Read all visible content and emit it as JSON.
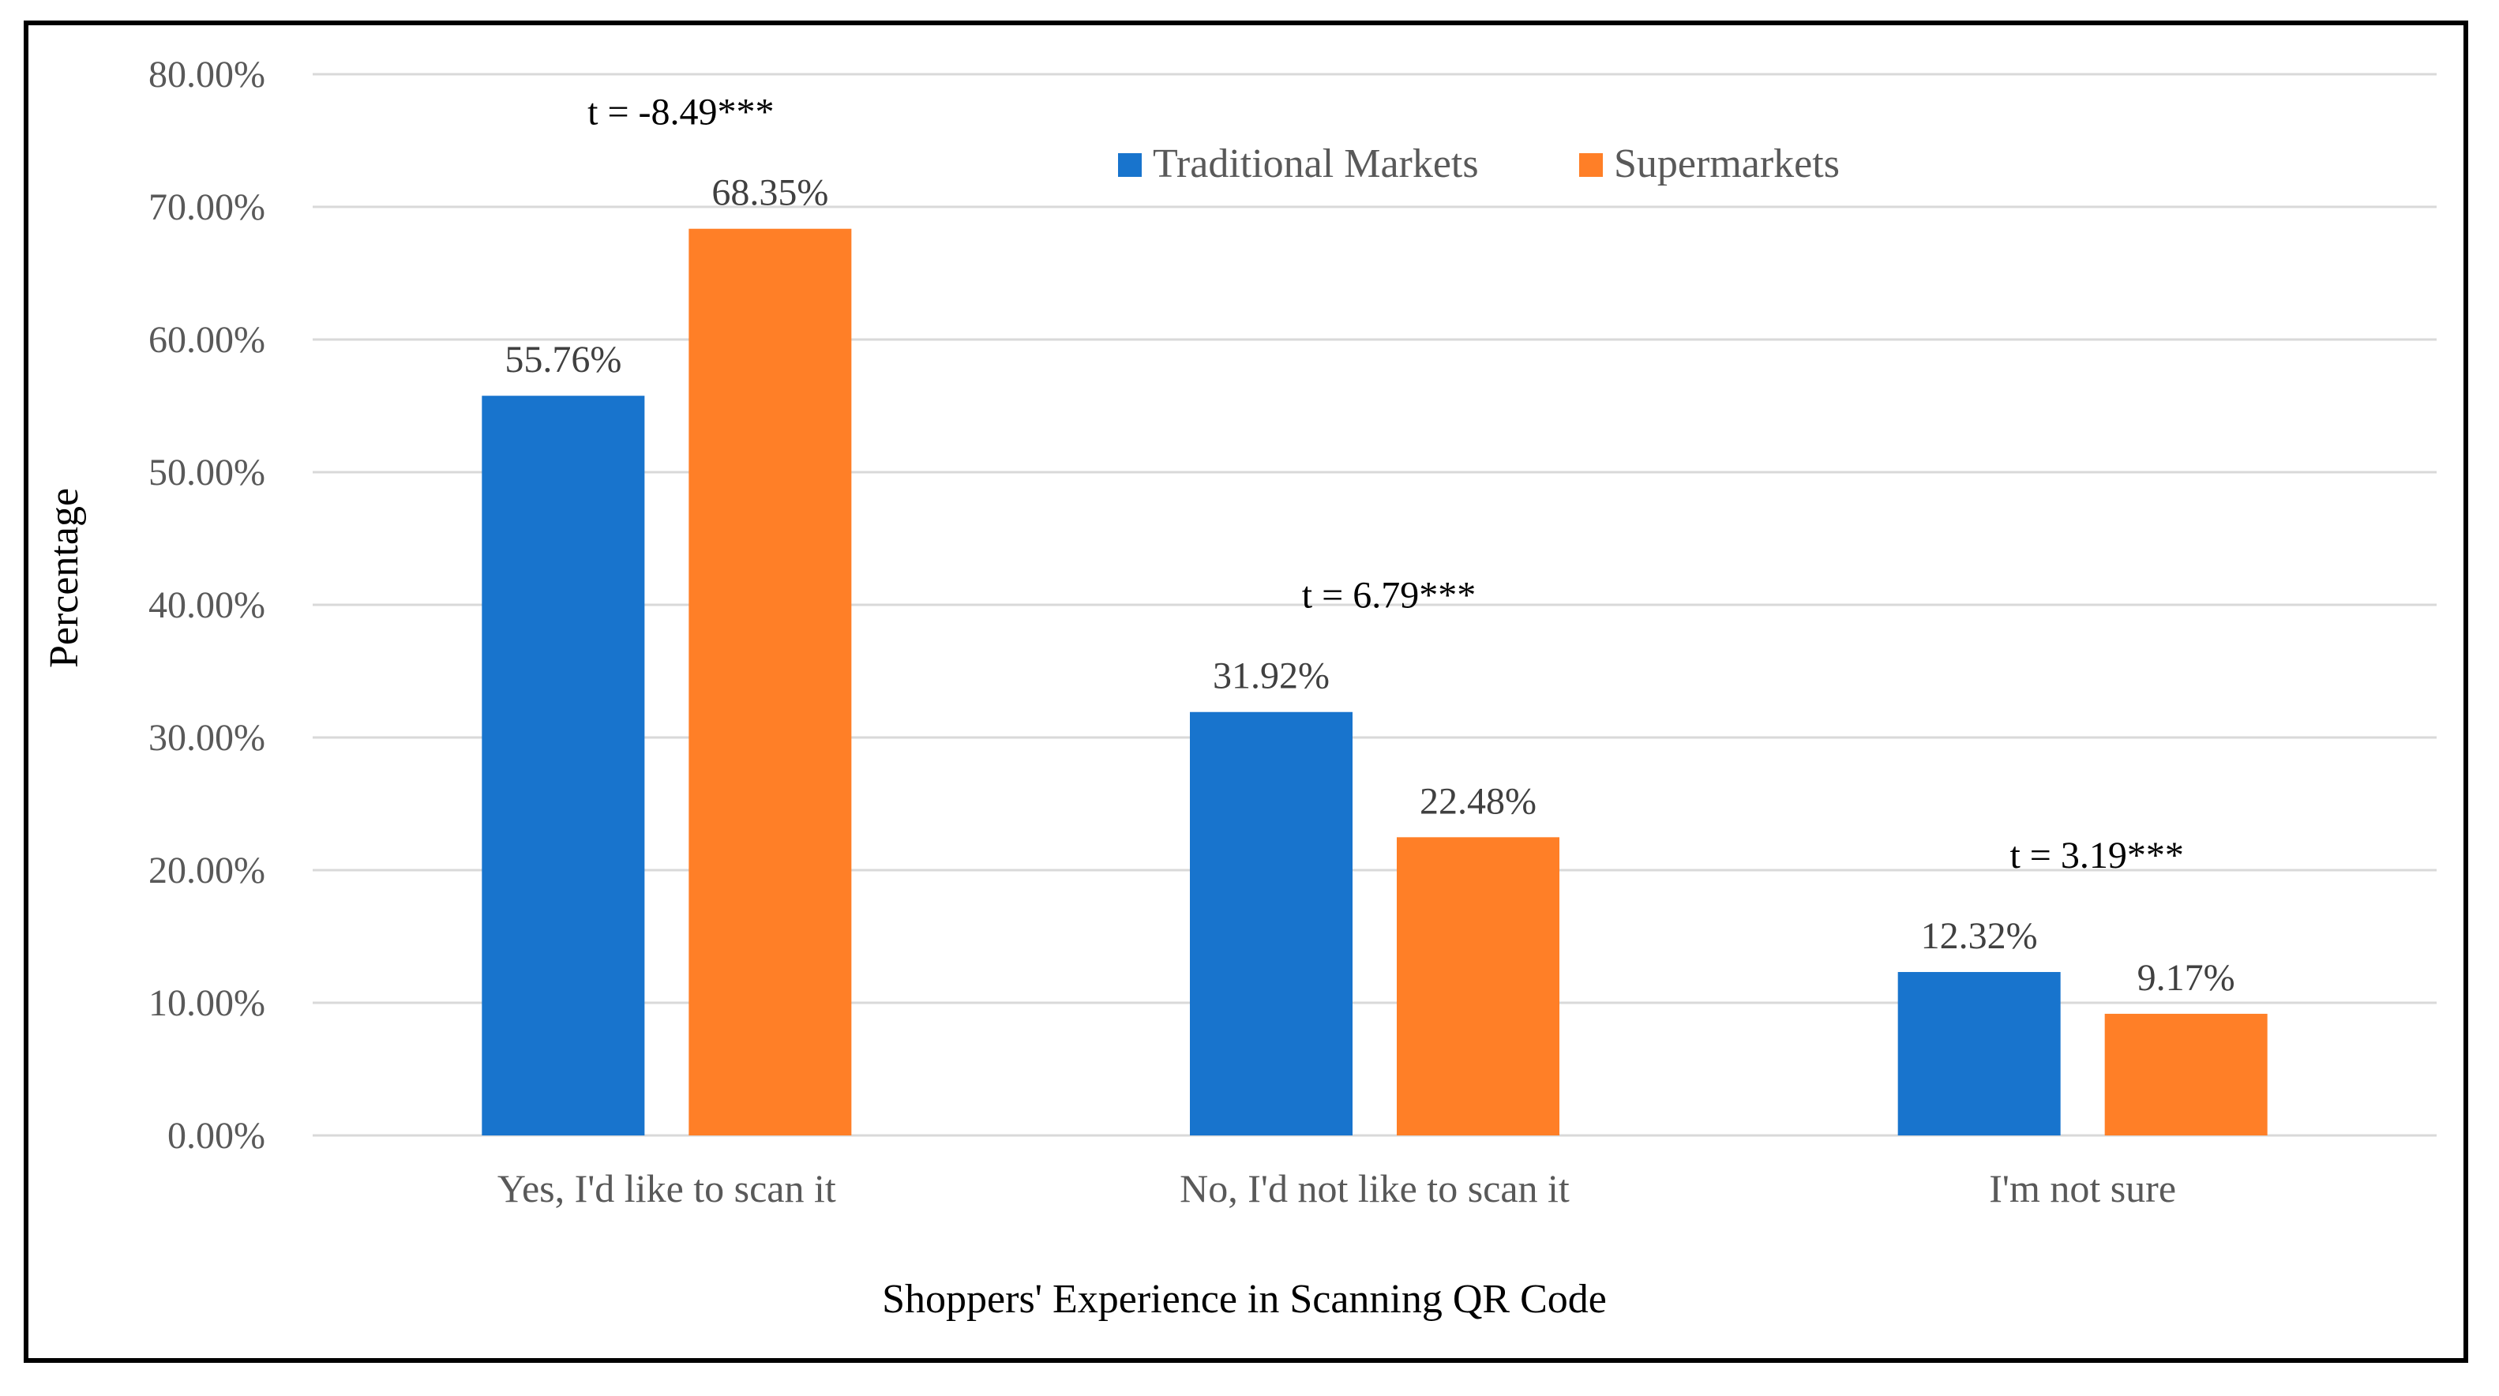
{
  "chart_data": {
    "type": "bar",
    "categories": [
      "Yes, I'd like to scan it",
      "No, I'd not like to scan it",
      "I'm not sure"
    ],
    "series": [
      {
        "name": "Traditional Markets",
        "color": "#1874CD",
        "values": [
          55.76,
          31.92,
          12.32
        ],
        "labels": [
          "55.76%",
          "31.92%",
          "12.32%"
        ]
      },
      {
        "name": "Supermarkets",
        "color": "#FF7F27",
        "values": [
          68.35,
          22.48,
          9.17
        ],
        "labels": [
          "68.35%",
          "22.48%",
          "9.17%"
        ]
      }
    ],
    "annotations": [
      "t = -8.49***",
      "t = 6.79***",
      "t = 3.19***"
    ],
    "xlabel": "Shoppers' Experience in Scanning QR Code",
    "ylabel": "Percentage",
    "ylim": [
      0,
      80
    ],
    "yticks": [
      0,
      10,
      20,
      30,
      40,
      50,
      60,
      70,
      80
    ],
    "ytick_labels": [
      "0.00%",
      "10.00%",
      "20.00%",
      "30.00%",
      "40.00%",
      "50.00%",
      "60.00%",
      "70.00%",
      "80.00%"
    ],
    "grid": true,
    "legend_position": "top-center"
  }
}
